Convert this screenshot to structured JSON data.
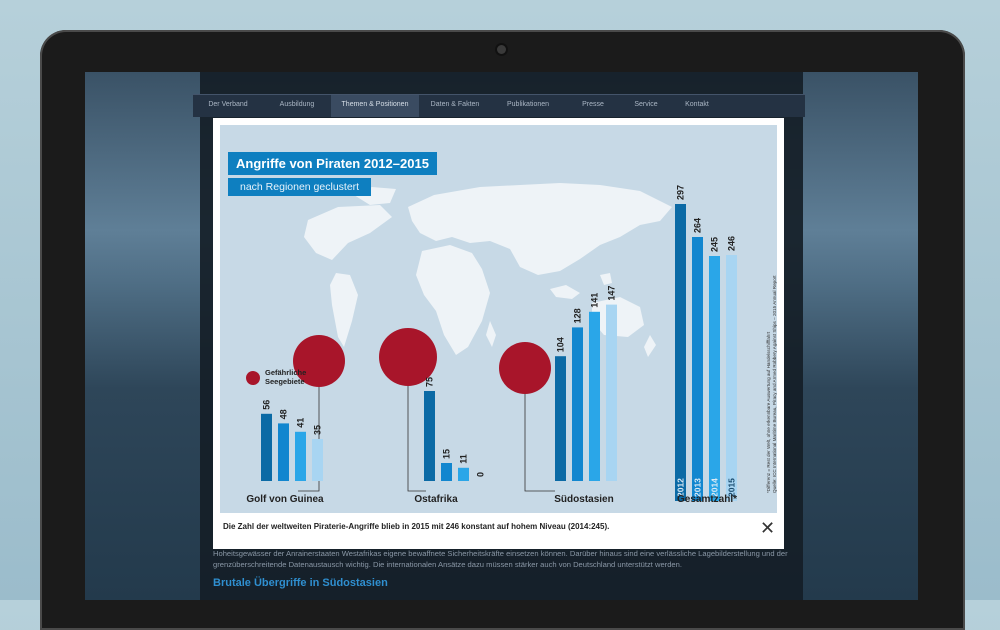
{
  "site": {
    "nav": [
      {
        "label": "Der Verband",
        "active": false
      },
      {
        "label": "Ausbildung",
        "active": false
      },
      {
        "label": "Themen & Positionen",
        "active": true
      },
      {
        "label": "Daten & Fakten",
        "active": false
      },
      {
        "label": "Publikationen",
        "active": false
      },
      {
        "label": "Presse",
        "active": false
      },
      {
        "label": "Service",
        "active": false
      },
      {
        "label": "Kontakt",
        "active": false
      }
    ],
    "body_text": "Hoheitsgewässer der Anrainerstaaten Westafrikas eigene bewaffnete Sicherheitskräfte einsetzen können. Darüber hinaus sind eine verlässliche Lagebilderstellung und der grenzüberschreitende Datenaustausch wichtig. Die internationalen Ansätze dazu müssen stärker auch von Deutschland unterstützt werden.",
    "section_heading": "Brutale Übergriffe in Südostasien"
  },
  "modal": {
    "caption": "Die Zahl der weltweiten Piraterie-Angriffe blieb in 2015 mit 246 konstant auf hohem Niveau (2014:245).",
    "close_icon": "close-icon"
  },
  "chart_data": {
    "type": "bar",
    "title": "Angriffe von Piraten 2012–2015",
    "subtitle": "nach Regionen geclustert",
    "legend": {
      "label_line1": "Gefährliche",
      "label_line2": "Seegebiete",
      "color": "#a8152a"
    },
    "series_years": [
      "2012",
      "2013",
      "2014",
      "2015"
    ],
    "series_colors": [
      "#0b6aa5",
      "#1186cf",
      "#2aa6e8",
      "#a8d5f2"
    ],
    "groups": [
      {
        "name": "Golf von Guinea",
        "values": [
          56,
          48,
          41,
          35
        ]
      },
      {
        "name": "Ostafrika",
        "values": [
          75,
          15,
          11,
          0
        ]
      },
      {
        "name": "Südostasien",
        "values": [
          104,
          128,
          141,
          147
        ]
      },
      {
        "name": "Gesamtzahl*",
        "values": [
          297,
          264,
          245,
          246
        ]
      }
    ],
    "source_note_line1": "*Differenz = Rest der Welt, ohne erkennbare Auswertung auf Handelsschifffahrt",
    "source_note_line2": "Quelle: ICC International Maritime Bureau, Piracy and Armed Robbery Against Ships – 2015 Annual Report",
    "colors": {
      "map": "#eef3f7",
      "background": "#c7d9e6",
      "title_box": "#0e7fc0"
    }
  }
}
